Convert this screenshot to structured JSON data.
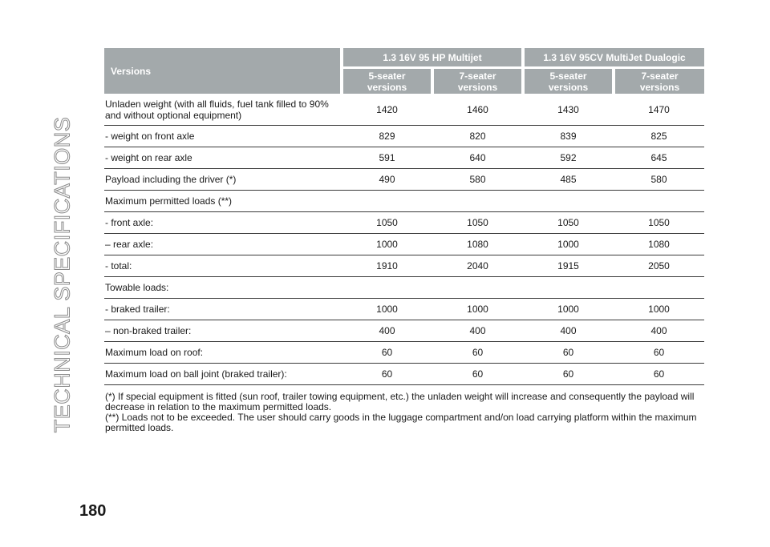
{
  "side_title": "TECHNICAL SPECIFICATIONS",
  "page_number": "180",
  "table": {
    "versions_label": "Versions",
    "engines": [
      "1.3 16V 95 HP Multijet",
      "1.3 16V 95CV MultiJet Dualogic"
    ],
    "seat_versions": [
      "5-seater\nversions",
      "7-seater\nversions",
      "5-seater\nversions",
      "7-seater\nversions"
    ],
    "rows": [
      {
        "label": "Unladen weight (with all fluids, fuel tank filled to 90%\nand without optional equipment)",
        "values": [
          "1420",
          "1460",
          "1430",
          "1470"
        ]
      },
      {
        "label": "- weight on front axle",
        "values": [
          "829",
          "820",
          "839",
          "825"
        ]
      },
      {
        "label": "- weight on rear axle",
        "values": [
          "591",
          "640",
          "592",
          "645"
        ]
      },
      {
        "label": "Payload including the driver (*)",
        "values": [
          "490",
          "580",
          "485",
          "580"
        ]
      },
      {
        "label": "Maximum permitted loads (**)",
        "values": [
          "",
          "",
          "",
          ""
        ]
      },
      {
        "label": "- front axle:",
        "values": [
          "1050",
          "1050",
          "1050",
          "1050"
        ]
      },
      {
        "label": "– rear axle:",
        "values": [
          "1000",
          "1080",
          "1000",
          "1080"
        ]
      },
      {
        "label": "- total:",
        "values": [
          "1910",
          "2040",
          "1915",
          "2050"
        ]
      },
      {
        "label": "Towable loads:",
        "values": [
          "",
          "",
          "",
          ""
        ]
      },
      {
        "label": "- braked trailer:",
        "values": [
          "1000",
          "1000",
          "1000",
          "1000"
        ]
      },
      {
        "label": "– non-braked trailer:",
        "values": [
          "400",
          "400",
          "400",
          "400"
        ]
      },
      {
        "label": "Maximum load on roof:",
        "values": [
          "60",
          "60",
          "60",
          "60"
        ]
      },
      {
        "label": "Maximum load on ball joint (braked trailer):",
        "values": [
          "60",
          "60",
          "60",
          "60"
        ]
      }
    ]
  },
  "notes": [
    "(*) If special equipment is fitted (sun roof, trailer towing equipment, etc.) the unladen weight will increase and consequently the payload will decrease in relation to the maximum permitted loads.",
    "(**) Loads not to be exceeded. The user should carry goods in the luggage compartment and/on load carrying platform within the maximum permitted loads."
  ]
}
